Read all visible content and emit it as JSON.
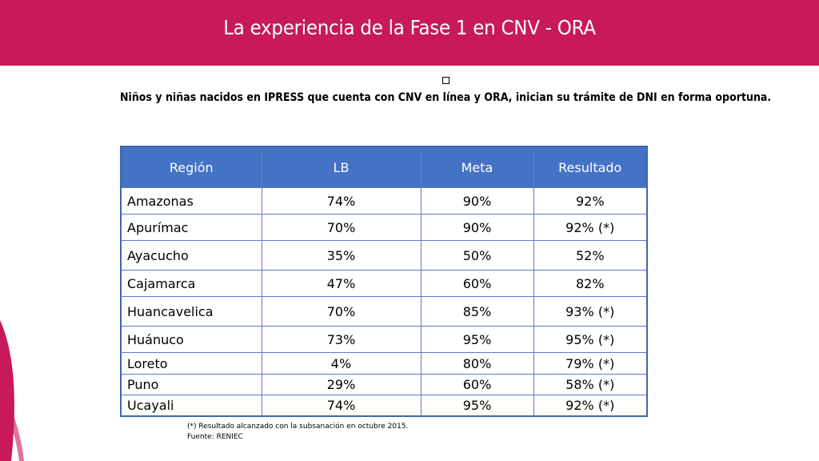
{
  "header": {
    "title": "La experiencia de la Fase 1 en CNV - ORA",
    "color": "#c8195a"
  },
  "subtitle": "Niños y niñas nacidos en IPRESS que cuenta con CNV en línea y ORA, inician su trámite de DNI en forma oportuna.",
  "table": {
    "headers": [
      "Región",
      "LB",
      "Meta",
      "Resultado"
    ],
    "rows": [
      [
        "Amazonas",
        "74%",
        "90%",
        "92%"
      ],
      [
        "Apurímac",
        "70%",
        "90%",
        "92% (*)"
      ],
      [
        "Ayacucho",
        "35%",
        "50%",
        "52%"
      ],
      [
        "Cajamarca",
        "47%",
        "60%",
        "82%"
      ],
      [
        "Huancavelica",
        "70%",
        "85%",
        "93% (*)"
      ],
      [
        "Huánuco",
        "73%",
        "95%",
        "95%  (*)"
      ],
      [
        "Loreto",
        "4%",
        "80%",
        "79% (*)"
      ],
      [
        "Puno",
        "29%",
        "60%",
        "58% (*)"
      ],
      [
        "Ucayali",
        "74%",
        "95%",
        "92% (*)"
      ]
    ],
    "header_color": "#4472c4"
  },
  "footnote": {
    "line1": "(*) Resultado alcanzado con la subsanación en octubre  2015.",
    "line2": "Fuente: RENIEC"
  }
}
